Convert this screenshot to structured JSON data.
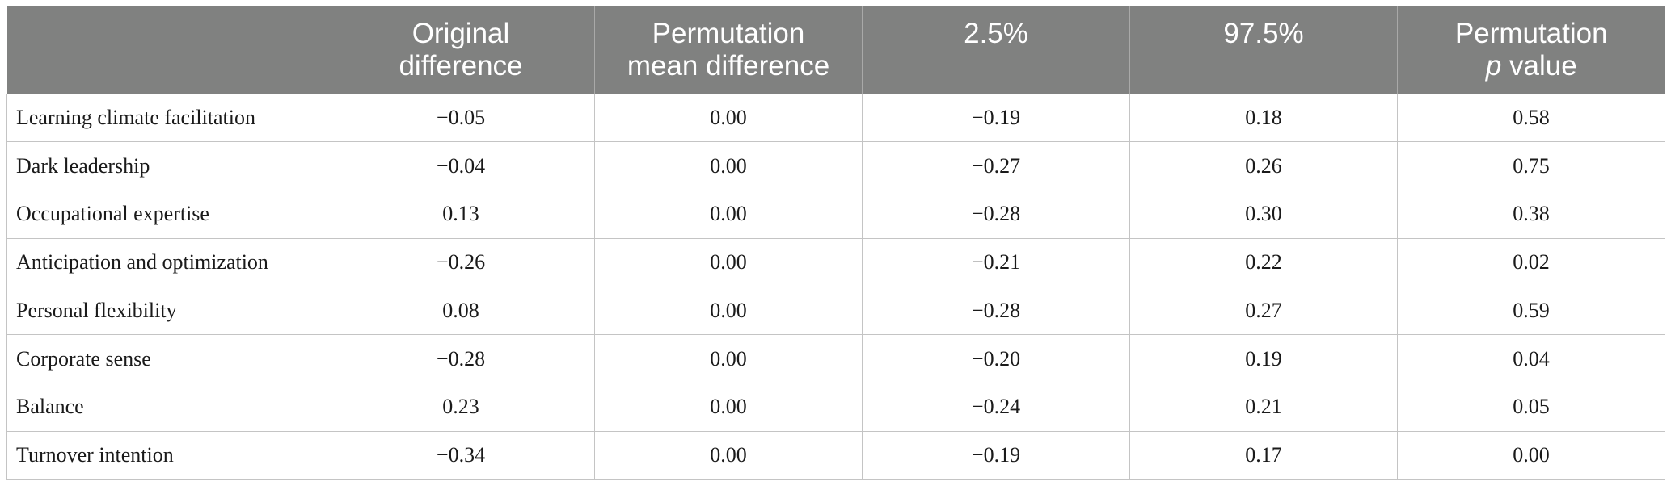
{
  "table": {
    "headers": [
      {
        "lines": [
          ""
        ]
      },
      {
        "lines": [
          "Original",
          "difference"
        ]
      },
      {
        "lines": [
          "Permutation",
          "mean difference"
        ]
      },
      {
        "lines": [
          "2.5%"
        ]
      },
      {
        "lines": [
          "97.5%"
        ]
      },
      {
        "lines": [
          "Permutation",
          "p",
          " value"
        ]
      }
    ],
    "rows": [
      {
        "label": "Learning climate facilitation",
        "original": "−0.05",
        "perm_mean": "0.00",
        "p2_5": "−0.19",
        "p97_5": "0.18",
        "pval": "0.58"
      },
      {
        "label": "Dark leadership",
        "original": "−0.04",
        "perm_mean": "0.00",
        "p2_5": "−0.27",
        "p97_5": "0.26",
        "pval": "0.75"
      },
      {
        "label": "Occupational expertise",
        "original": "0.13",
        "perm_mean": "0.00",
        "p2_5": "−0.28",
        "p97_5": "0.30",
        "pval": "0.38"
      },
      {
        "label": "Anticipation and optimization",
        "original": "−0.26",
        "perm_mean": "0.00",
        "p2_5": "−0.21",
        "p97_5": "0.22",
        "pval": "0.02"
      },
      {
        "label": "Personal flexibility",
        "original": "0.08",
        "perm_mean": "0.00",
        "p2_5": "−0.28",
        "p97_5": "0.27",
        "pval": "0.59"
      },
      {
        "label": "Corporate sense",
        "original": "−0.28",
        "perm_mean": "0.00",
        "p2_5": "−0.20",
        "p97_5": "0.19",
        "pval": "0.04"
      },
      {
        "label": "Balance",
        "original": "0.23",
        "perm_mean": "0.00",
        "p2_5": "−0.24",
        "p97_5": "0.21",
        "pval": "0.05"
      },
      {
        "label": "Turnover intention",
        "original": "−0.34",
        "perm_mean": "0.00",
        "p2_5": "−0.19",
        "p97_5": "0.17",
        "pval": "0.00"
      }
    ]
  },
  "colors": {
    "header_bg": "#808180",
    "header_text": "#ffffff",
    "grid": "#c4c4c4"
  }
}
